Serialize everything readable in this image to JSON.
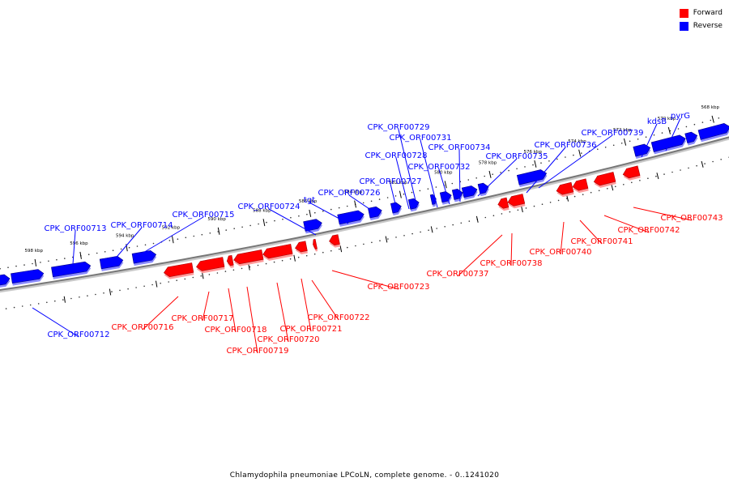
{
  "legend": {
    "forward_label": "Forward",
    "reverse_label": "Reverse",
    "forward_color": "#ff0000",
    "reverse_color": "#0000ff"
  },
  "caption": "Chlamydophila pneumoniae LPCoLN, complete genome. - 0..1241020",
  "scale_labels": [
    "598 kbp",
    "596 kbp",
    "594 kbp",
    "592 kbp",
    "590 kbp",
    "588 kbp",
    "586 kbp",
    "584 kbp",
    "582 kbp",
    "580 kbp",
    "578 kbp",
    "576 kbp",
    "574 kbp",
    "572 kbp",
    "570 kbp",
    "568 kbp"
  ],
  "reverse_genes": [
    "CPK_ORF00712",
    "CPK_ORF00713",
    "CPK_ORF00714",
    "CPK_ORF00715",
    "CPK_ORF00724",
    "tgt",
    "CPK_ORF00726",
    "CPK_ORF00727",
    "CPK_ORF00728",
    "CPK_ORF00729",
    "CPK_ORF00731",
    "CPK_ORF00732",
    "CPK_ORF00734",
    "CPK_ORF00735",
    "CPK_ORF00736",
    "CPK_ORF00739",
    "kdsB",
    "pyrG"
  ],
  "forward_genes": [
    "CPK_ORF00716",
    "CPK_ORF00717",
    "CPK_ORF00718",
    "CPK_ORF00719",
    "CPK_ORF00720",
    "CPK_ORF00721",
    "CPK_ORF00722",
    "CPK_ORF00723",
    "CPK_ORF00737",
    "CPK_ORF00738",
    "CPK_ORF00740",
    "CPK_ORF00741",
    "CPK_ORF00742",
    "CPK_ORF00743"
  ]
}
